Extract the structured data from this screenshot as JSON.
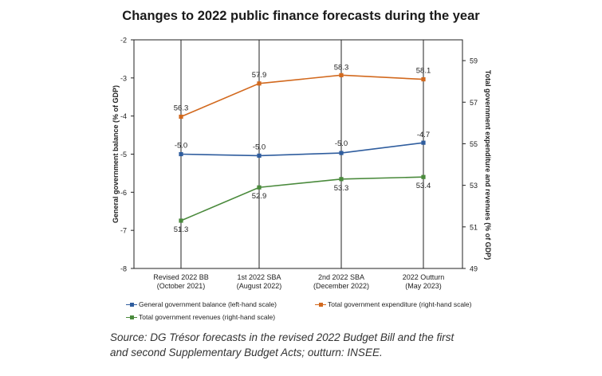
{
  "chart_data": {
    "type": "line",
    "title": "Changes to 2022 public finance forecasts during the year",
    "categories": [
      {
        "line1": "Revised 2022 BB",
        "line2": "(October 2021)"
      },
      {
        "line1": "1st 2022 SBA",
        "line2": "(August 2022)"
      },
      {
        "line1": "2nd 2022 SBA",
        "line2": "(December 2022)"
      },
      {
        "line1": "2022 Outturn",
        "line2": "(May 2023)"
      }
    ],
    "left_axis": {
      "label": "General government balance (% of GDP)",
      "ylim": [
        -8,
        -2
      ],
      "ticks": [
        -2,
        -3,
        -4,
        -5,
        -6,
        -7,
        -8
      ]
    },
    "right_axis": {
      "label": "Total government expenditure and revenues (% of GDP)",
      "ylim": [
        49,
        60
      ],
      "ticks": [
        59,
        57,
        55,
        53,
        51,
        49
      ]
    },
    "series": [
      {
        "name": "General government balance (left-hand scale)",
        "axis": "left",
        "color": "#2f5d9e",
        "values": [
          -5.0,
          -5.04,
          -4.97,
          -4.7
        ],
        "labels": [
          "-5.0",
          "-5.0",
          "-5.0",
          "-4.7"
        ]
      },
      {
        "name": "Total government expenditure (right-hand scale)",
        "axis": "right",
        "color": "#d2691e",
        "values": [
          56.3,
          57.9,
          58.3,
          58.1
        ],
        "labels": [
          "56.3",
          "57.9",
          "58.3",
          "58.1"
        ]
      },
      {
        "name": "Total government revenues (right-hand scale)",
        "axis": "right",
        "color": "#4a8a3c",
        "values": [
          51.3,
          52.9,
          53.3,
          53.4
        ],
        "labels": [
          "51.3",
          "52.9",
          "53.3",
          "53.4"
        ]
      }
    ]
  },
  "source": {
    "line1": "Source: DG Trésor forecasts in the revised 2022 Budget Bill and the first",
    "line2": "and second Supplementary Budget Acts; outturn: INSEE."
  }
}
